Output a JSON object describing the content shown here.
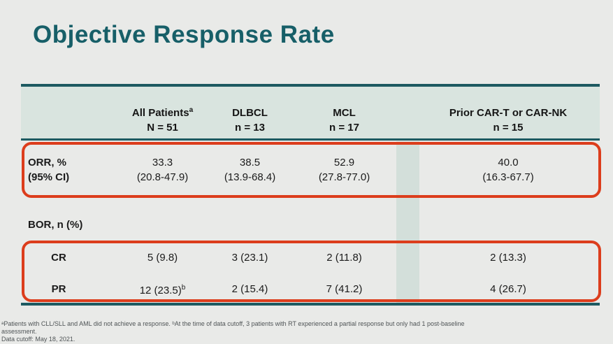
{
  "page": {
    "title": "Objective Response Rate"
  },
  "colors": {
    "page_background": "#e9eae8",
    "title_teal": "#175f68",
    "table_border_teal": "#1d5a61",
    "header_background": "#d9e4df",
    "highlight_box_red": "#dc3d1c",
    "column_band_teal": "#d3dfda",
    "body_text": "#1b1b1b",
    "footnote_gray": "#4f5456"
  },
  "table": {
    "columns": [
      {
        "label": "All Patients",
        "sup": "a",
        "n": "N = 51"
      },
      {
        "label": "DLBCL",
        "sup": "",
        "n": "n = 13"
      },
      {
        "label": "MCL",
        "sup": "",
        "n": "n = 17"
      },
      {
        "label": "Prior CAR-T or CAR-NK",
        "sup": "",
        "n": "n = 15"
      }
    ],
    "orr_row": {
      "label_line1": "ORR, %",
      "label_line2": "(95% CI)",
      "values": [
        {
          "line1": "33.3",
          "line2": "(20.8-47.9)"
        },
        {
          "line1": "38.5",
          "line2": "(13.9-68.4)"
        },
        {
          "line1": "52.9",
          "line2": "(27.8-77.0)"
        },
        {
          "line1": "40.0",
          "line2": "(16.3-67.7)"
        }
      ]
    },
    "bor_label": "BOR, n (%)",
    "cr_row": {
      "label": "CR",
      "values": [
        "5 (9.8)",
        "3 (23.1)",
        "2 (11.8)",
        "2 (13.3)"
      ]
    },
    "pr_row": {
      "label": "PR",
      "values": [
        "12 (23.5)",
        "2 (15.4)",
        "7 (41.2)",
        "4 (26.7)"
      ],
      "sup0": "b"
    }
  },
  "footnotes": {
    "line1": "ᵃPatients with CLL/SLL and AML did not achieve a response. ᵇAt the time of data cutoff, 3 patients with RT experienced a partial response but only had 1 post-baseline",
    "line2": "assessment.",
    "line3": "Data cutoff: May 18, 2021."
  }
}
